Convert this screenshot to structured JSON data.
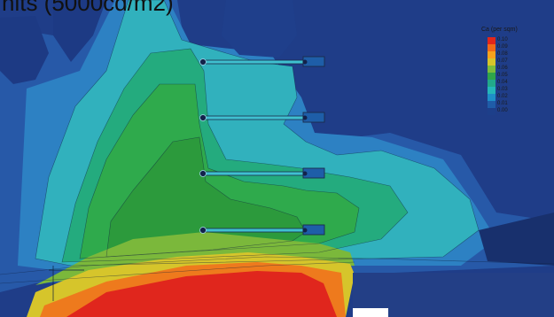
{
  "title": "nits (5000cd/m2)",
  "legend": {
    "title": "Ca (per sqm)",
    "entries": [
      {
        "label": "0.10",
        "color": "#e3261b"
      },
      {
        "label": "0.09",
        "color": "#f16a17"
      },
      {
        "label": "0.08",
        "color": "#f7a21c"
      },
      {
        "label": "0.07",
        "color": "#d6c42a"
      },
      {
        "label": "0.06",
        "color": "#7cbc3b"
      },
      {
        "label": "0.05",
        "color": "#2fa54a"
      },
      {
        "label": "0.04",
        "color": "#22a98a"
      },
      {
        "label": "0.03",
        "color": "#25b6b9"
      },
      {
        "label": "0.02",
        "color": "#1e8fc8"
      },
      {
        "label": "0.01",
        "color": "#1f5ca8"
      },
      {
        "label": "0.00",
        "color": "#1d3f8a"
      }
    ]
  },
  "palette": {
    "deep_blue": "#1e3c86",
    "blue": "#2657a6",
    "mid_blue": "#2a7cc0",
    "cyan": "#30b2bb",
    "teal": "#1eb08a",
    "green_light": "#2fae52",
    "green": "#2f9d3e",
    "lime": "#79b83a",
    "yellow": "#d6c52b",
    "orange": "#ee7a1d",
    "red": "#e0261d",
    "fixture_line": "#1b2b4a"
  }
}
